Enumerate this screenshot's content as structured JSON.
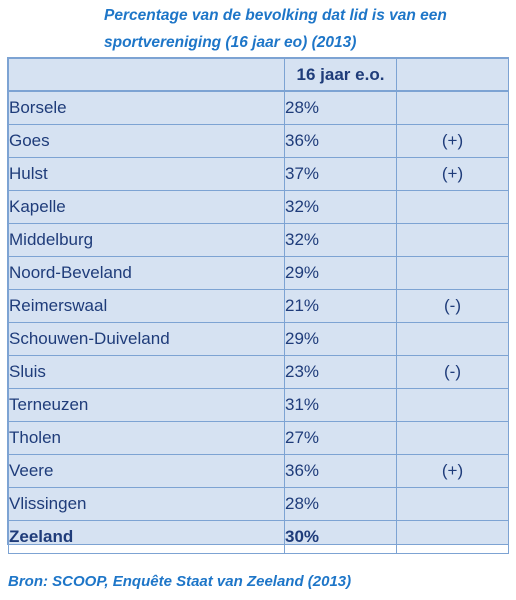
{
  "title": "Percentage van de bevolking dat lid is van een sportvereniging (16 jaar eo) (2013)",
  "table": {
    "header": [
      "",
      "16 jaar e.o.",
      ""
    ],
    "rows": [
      {
        "name": "Borsele",
        "pct": "28%",
        "sig": ""
      },
      {
        "name": "Goes",
        "pct": "36%",
        "sig": "(+)"
      },
      {
        "name": "Hulst",
        "pct": "37%",
        "sig": "(+)"
      },
      {
        "name": "Kapelle",
        "pct": "32%",
        "sig": ""
      },
      {
        "name": "Middelburg",
        "pct": "32%",
        "sig": ""
      },
      {
        "name": "Noord-Beveland",
        "pct": "29%",
        "sig": ""
      },
      {
        "name": "Reimerswaal",
        "pct": "21%",
        "sig": "(-)"
      },
      {
        "name": "Schouwen-Duiveland",
        "pct": "29%",
        "sig": ""
      },
      {
        "name": "Sluis",
        "pct": "23%",
        "sig": "(-)"
      },
      {
        "name": "Terneuzen",
        "pct": "31%",
        "sig": ""
      },
      {
        "name": "Tholen",
        "pct": "27%",
        "sig": ""
      },
      {
        "name": "Veere",
        "pct": "36%",
        "sig": "(+)"
      },
      {
        "name": "Vlissingen",
        "pct": "28%",
        "sig": ""
      }
    ],
    "total": {
      "name": "Zeeland",
      "pct": "30%",
      "sig": ""
    }
  },
  "source": "Bron: SCOOP, Enquête Staat van Zeeland (2013)",
  "colors": {
    "title_blue": "#1e76c8",
    "table_bg": "#d6e2f2",
    "border": "#7da3d3",
    "text_navy": "#1f3c7a"
  }
}
